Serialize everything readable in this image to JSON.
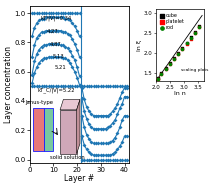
{
  "chart_data": [
    {
      "type": "line",
      "x_label": "Layer #",
      "y_label": "Layer concentration",
      "xlim": [
        0,
        42
      ],
      "ylim": [
        -0.02,
        1.05
      ],
      "xticks": [
        0,
        10,
        20,
        30,
        40
      ],
      "yticks": [
        0.0,
        0.2,
        0.4,
        0.6,
        0.8,
        1.0
      ],
      "marker": "diamond",
      "vlines": [
        21.5
      ],
      "series": [
        {
          "x": [
            1,
            2,
            3,
            4,
            5,
            6,
            7,
            8,
            9,
            10,
            11,
            12,
            13,
            14,
            15,
            16,
            17,
            18,
            19,
            20,
            21
          ],
          "values": [
            1.0,
            1.0,
            1.0,
            1.0,
            1.0,
            1.0,
            1.0,
            1.0,
            1.0,
            1.0,
            1.0,
            1.0,
            1.0,
            1.0,
            1.0,
            1.0,
            1.0,
            1.0,
            1.0,
            1.0,
            1.0
          ]
        },
        {
          "x": [
            1,
            2,
            3,
            4,
            5,
            6,
            7,
            8,
            9,
            10,
            11,
            12,
            13,
            14,
            15,
            16,
            17,
            18,
            19,
            20,
            21
          ],
          "values": [
            0.84,
            0.9,
            0.93,
            0.95,
            0.96,
            0.96,
            0.97,
            0.97,
            0.97,
            0.97,
            0.97,
            0.97,
            0.97,
            0.97,
            0.96,
            0.96,
            0.95,
            0.93,
            0.91,
            0.88,
            0.84
          ]
        },
        {
          "x": [
            1,
            2,
            3,
            4,
            5,
            6,
            7,
            8,
            9,
            10,
            11,
            12,
            13,
            14,
            15,
            16,
            17,
            18,
            19,
            20,
            21
          ],
          "values": [
            0.7,
            0.78,
            0.83,
            0.85,
            0.87,
            0.87,
            0.88,
            0.88,
            0.88,
            0.88,
            0.88,
            0.88,
            0.88,
            0.87,
            0.87,
            0.86,
            0.85,
            0.82,
            0.79,
            0.75,
            0.7
          ]
        },
        {
          "x": [
            1,
            2,
            3,
            4,
            5,
            6,
            7,
            8,
            9,
            10,
            11,
            12,
            13,
            14,
            15,
            16,
            17,
            18,
            19,
            20,
            21
          ],
          "values": [
            0.58,
            0.67,
            0.72,
            0.75,
            0.77,
            0.78,
            0.78,
            0.79,
            0.79,
            0.79,
            0.79,
            0.79,
            0.78,
            0.78,
            0.77,
            0.76,
            0.74,
            0.71,
            0.68,
            0.63,
            0.57
          ]
        },
        {
          "x": [
            1,
            2,
            3,
            4,
            5,
            6,
            7,
            8,
            9,
            10,
            11,
            12,
            13,
            14,
            15,
            16,
            17,
            18,
            19,
            20,
            21
          ],
          "values": [
            0.52,
            0.59,
            0.63,
            0.66,
            0.68,
            0.69,
            0.69,
            0.7,
            0.7,
            0.7,
            0.7,
            0.7,
            0.7,
            0.69,
            0.69,
            0.68,
            0.66,
            0.63,
            0.6,
            0.56,
            0.51
          ]
        },
        {
          "x": [
            1,
            2,
            3,
            4,
            5,
            6,
            7,
            8,
            9,
            10,
            11,
            12,
            13,
            14,
            15,
            16,
            17,
            18,
            19,
            20,
            21
          ],
          "values": [
            0.5,
            0.5,
            0.5,
            0.5,
            0.5,
            0.5,
            0.5,
            0.5,
            0.5,
            0.5,
            0.5,
            0.5,
            0.5,
            0.5,
            0.5,
            0.5,
            0.5,
            0.5,
            0.5,
            0.5,
            0.5
          ]
        },
        {
          "x": [
            22,
            23,
            24,
            25,
            26,
            27,
            28,
            29,
            30,
            31,
            32,
            33,
            34,
            35,
            36,
            37,
            38,
            39,
            40,
            41
          ],
          "values": [
            0.0,
            0.0,
            0.0,
            0.0,
            0.0,
            0.0,
            0.0,
            0.0,
            0.0,
            0.0,
            0.0,
            0.0,
            0.0,
            0.0,
            0.0,
            0.0,
            0.0,
            0.0,
            0.0,
            0.0
          ]
        },
        {
          "x": [
            22,
            23,
            24,
            25,
            26,
            27,
            28,
            29,
            30,
            31,
            32,
            33,
            34,
            35,
            36,
            37,
            38,
            39,
            40,
            41
          ],
          "values": [
            0.16,
            0.1,
            0.07,
            0.05,
            0.04,
            0.03,
            0.03,
            0.03,
            0.03,
            0.03,
            0.03,
            0.03,
            0.03,
            0.04,
            0.05,
            0.07,
            0.09,
            0.12,
            0.16,
            0.16
          ]
        },
        {
          "x": [
            22,
            23,
            24,
            25,
            26,
            27,
            28,
            29,
            30,
            31,
            32,
            33,
            34,
            35,
            36,
            37,
            38,
            39,
            40,
            41
          ],
          "values": [
            0.3,
            0.22,
            0.17,
            0.14,
            0.12,
            0.11,
            0.11,
            0.11,
            0.11,
            0.11,
            0.11,
            0.11,
            0.12,
            0.13,
            0.15,
            0.18,
            0.22,
            0.27,
            0.3,
            0.3
          ]
        },
        {
          "x": [
            22,
            23,
            24,
            25,
            26,
            27,
            28,
            29,
            30,
            31,
            32,
            33,
            34,
            35,
            36,
            37,
            38,
            39,
            40,
            41
          ],
          "values": [
            0.42,
            0.33,
            0.28,
            0.24,
            0.22,
            0.21,
            0.21,
            0.21,
            0.21,
            0.21,
            0.21,
            0.22,
            0.23,
            0.25,
            0.27,
            0.31,
            0.35,
            0.38,
            0.43,
            0.43
          ]
        },
        {
          "x": [
            22,
            23,
            24,
            25,
            26,
            27,
            28,
            29,
            30,
            31,
            32,
            33,
            34,
            35,
            36,
            37,
            38,
            39,
            40,
            41
          ],
          "values": [
            0.49,
            0.41,
            0.36,
            0.33,
            0.31,
            0.3,
            0.3,
            0.3,
            0.3,
            0.3,
            0.3,
            0.3,
            0.31,
            0.33,
            0.35,
            0.38,
            0.42,
            0.46,
            0.49,
            0.49
          ]
        },
        {
          "x": [
            22,
            23,
            24,
            25,
            26,
            27,
            28,
            29,
            30,
            31,
            32,
            33,
            34,
            35,
            36,
            37,
            38,
            39,
            40,
            41
          ],
          "values": [
            0.5,
            0.5,
            0.5,
            0.5,
            0.5,
            0.5,
            0.5,
            0.5,
            0.5,
            0.5,
            0.5,
            0.5,
            0.5,
            0.5,
            0.5,
            0.5,
            0.5,
            0.5,
            0.5,
            0.5
          ]
        }
      ],
      "annotations": [
        {
          "text": "kT/|V|=0.34",
          "x": 4.5,
          "y": 0.965
        },
        {
          "text": "4.27",
          "x": 7.0,
          "y": 0.875
        },
        {
          "text": "4.87",
          "x": 8.5,
          "y": 0.785
        },
        {
          "text": "5.13",
          "x": 9.5,
          "y": 0.7
        },
        {
          "text": "5.21",
          "x": 10.5,
          "y": 0.625
        },
        {
          "text": "kT_C/|V|=5.22",
          "x": 3.5,
          "y": 0.475
        }
      ],
      "diagram_labels": [
        {
          "text": "Janus-type",
          "x": 4.0,
          "y": 0.38
        },
        {
          "text": "solid solution",
          "x": 15.8,
          "y": 0.005
        }
      ]
    },
    {
      "type": "scatter",
      "x_label": "ln n",
      "y_label": "ln ξ",
      "xlim": [
        2.0,
        3.7
      ],
      "ylim": [
        1.3,
        3.1
      ],
      "xticks": [
        2.0,
        2.5,
        3.0,
        3.5
      ],
      "yticks": [
        1.5,
        2.0,
        2.5,
        3.0
      ],
      "legend": "upper left",
      "series": [
        {
          "type": "line",
          "color": "black",
          "x": [
            2.0,
            3.65
          ],
          "values": [
            1.3,
            2.95
          ]
        },
        {
          "name": "cube",
          "color": "black",
          "marker": "square",
          "x": [
            2.08,
            2.2,
            2.35,
            2.5,
            2.65,
            2.8,
            2.95,
            3.1,
            3.25,
            3.4,
            3.55
          ],
          "values": [
            1.38,
            1.51,
            1.63,
            1.76,
            1.88,
            2.01,
            2.14,
            2.27,
            2.4,
            2.53,
            2.68
          ]
        },
        {
          "name": "platelet",
          "color": "red",
          "marker": "square",
          "x": [
            2.08,
            2.2,
            2.35,
            2.5,
            2.65,
            2.8,
            2.95,
            3.1,
            3.25,
            3.4,
            3.55
          ],
          "values": [
            1.35,
            1.48,
            1.6,
            1.73,
            1.85,
            1.98,
            2.11,
            2.24,
            2.37,
            2.5,
            2.65
          ]
        },
        {
          "name": "rod",
          "color": "green",
          "marker": "circle",
          "x": [
            2.08,
            2.2,
            2.35,
            2.5,
            2.65,
            2.8,
            2.95,
            3.1,
            3.25,
            3.4,
            3.55
          ],
          "values": [
            1.36,
            1.49,
            1.61,
            1.74,
            1.86,
            1.99,
            2.12,
            2.25,
            2.38,
            2.51,
            2.66
          ]
        }
      ],
      "annotations": [
        {
          "text": "scaling plots",
          "x": 2.9,
          "y": 1.55
        }
      ]
    }
  ]
}
